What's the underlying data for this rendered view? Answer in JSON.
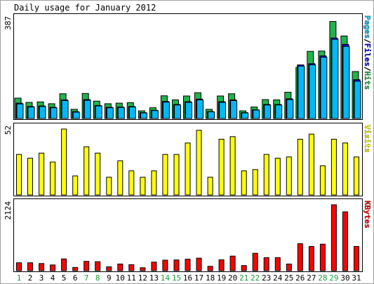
{
  "chart_data": {
    "type": "bar",
    "title": "Daily usage for January 2012",
    "categories": [
      "1",
      "2",
      "3",
      "4",
      "5",
      "6",
      "7",
      "8",
      "9",
      "10",
      "11",
      "12",
      "13",
      "14",
      "15",
      "16",
      "17",
      "18",
      "19",
      "20",
      "21",
      "22",
      "23",
      "24",
      "25",
      "26",
      "27",
      "28",
      "29",
      "30",
      "31"
    ],
    "weekend_days": [
      "1",
      "7",
      "8",
      "14",
      "15",
      "21",
      "22",
      "28",
      "29"
    ],
    "colors": {
      "hits": "#21b34c",
      "files": "#0000ff",
      "pages": "#00b8f8",
      "visits": "#ffff00",
      "kbytes": "#ff0000",
      "weekday_label": "#000000",
      "weekend_label": "#1a9e3a"
    },
    "panels": [
      {
        "key": "top",
        "ymax_label": "387",
        "ymax": 387,
        "legend_parts": [
          {
            "text": "Pages",
            "color": "#00b8f8"
          },
          {
            "text": "/",
            "color": "#000000"
          },
          {
            "text": "Files",
            "color": "#0000ff"
          },
          {
            "text": "/",
            "color": "#000000"
          },
          {
            "text": "Hits",
            "color": "#21b34c"
          }
        ],
        "series": [
          {
            "name": "Hits",
            "color": "#21b34c",
            "values": [
              80,
              63,
              65,
              58,
              97,
              36,
              98,
              68,
              58,
              60,
              62,
              30,
              42,
              89,
              73,
              88,
              101,
              36,
              88,
              97,
              30,
              45,
              74,
              73,
              103,
              200,
              263,
              264,
              380,
              323,
              184
            ]
          },
          {
            "name": "Files",
            "color": "#0000ff",
            "values": [
              60,
              47,
              49,
              44,
              73,
              27,
              74,
              51,
              44,
              45,
              47,
              23,
              32,
              67,
              55,
              66,
              76,
              27,
              66,
              73,
              23,
              34,
              55,
              55,
              77,
              210,
              215,
              245,
              315,
              290,
              152
            ]
          },
          {
            "name": "Pages",
            "color": "#00b8f8",
            "values": [
              57,
              45,
              47,
              42,
              70,
              25,
              71,
              49,
              42,
              43,
              45,
              22,
              31,
              64,
              53,
              63,
              73,
              26,
              63,
              70,
              22,
              33,
              53,
              53,
              74,
              205,
              210,
              240,
              310,
              282,
              146
            ]
          }
        ]
      },
      {
        "key": "visits",
        "ymax_label": "52",
        "ymax": 52,
        "legend_parts": [
          {
            "text": "Visits",
            "color": "#ffff00"
          }
        ],
        "series": [
          {
            "name": "Visits",
            "color": "#ffff00",
            "values": [
              32,
              29,
              33,
              26,
              52,
              15,
              38,
              33,
              14,
              27,
              19,
              14,
              19,
              32,
              32,
              41,
              51,
              14,
              44,
              46,
              19,
              20,
              32,
              29,
              30,
              44,
              48,
              23,
              44,
              41,
              30
            ]
          }
        ]
      },
      {
        "key": "kbytes",
        "ymax_label": "2124",
        "ymax": 2124,
        "legend_parts": [
          {
            "text": "KBytes",
            "color": "#ff0000"
          }
        ],
        "series": [
          {
            "name": "KBytes",
            "color": "#ff0000",
            "values": [
              255,
              255,
              230,
              185,
              380,
              105,
              300,
              290,
              125,
              215,
              195,
              95,
              275,
              340,
              345,
              370,
              405,
              140,
              350,
              470,
              165,
              560,
              420,
              420,
              215,
              870,
              780,
              855,
              2124,
              1895,
              780
            ]
          }
        ]
      }
    ]
  }
}
